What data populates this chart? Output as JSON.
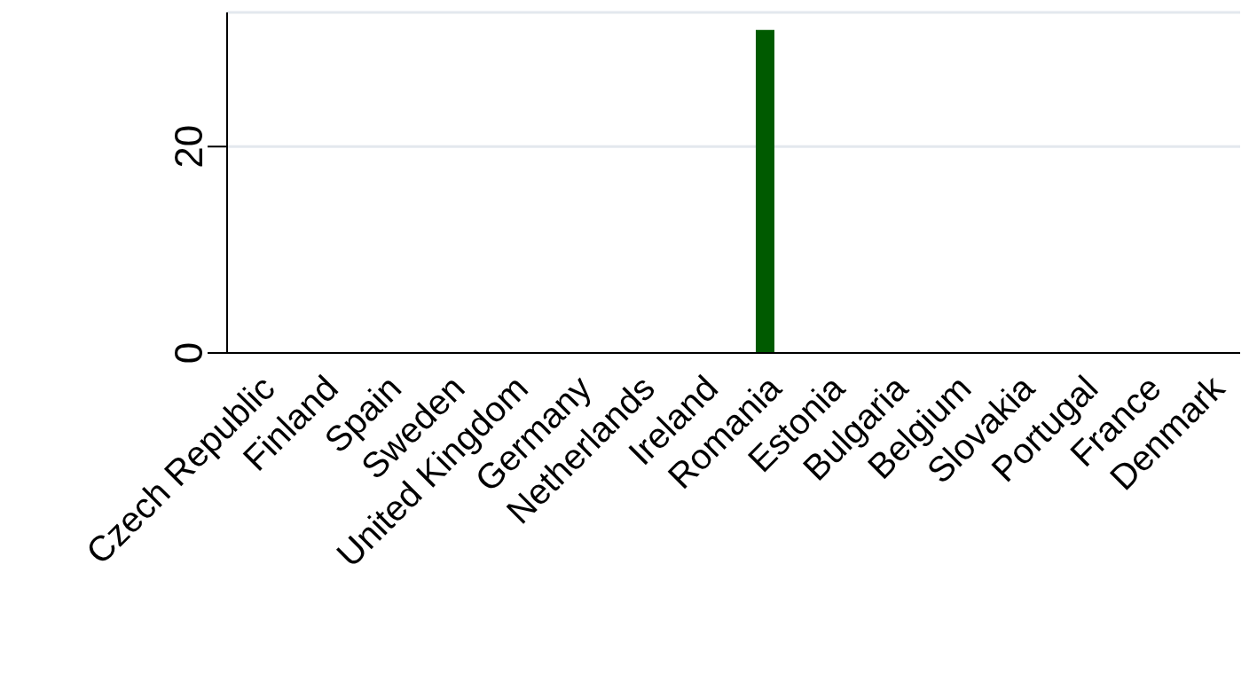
{
  "chart_data": {
    "type": "bar",
    "stacked": true,
    "categories": [
      "Czech Republic",
      "Finland",
      "Spain",
      "Sweden",
      "United Kingdom",
      "Germany",
      "Netherlands",
      "Ireland",
      "Romania",
      "Estonia",
      "Bulgaria",
      "Belgium",
      "Slovakia",
      "Portugal",
      "France",
      "Denmark"
    ],
    "series": [
      {
        "color": "#005a00",
        "values": [
          null,
          null,
          null,
          null,
          null,
          null,
          null,
          null,
          31.3,
          null,
          null,
          null,
          null,
          null,
          null,
          null
        ]
      },
      {
        "color": "#00ff00",
        "values": [
          null,
          null,
          null,
          null,
          null,
          null,
          null,
          null,
          null,
          null,
          null,
          null,
          null,
          null,
          null,
          null
        ]
      }
    ],
    "ylim": [
      0,
      33
    ],
    "yticks": [
      0,
      20
    ],
    "grid": "y"
  }
}
